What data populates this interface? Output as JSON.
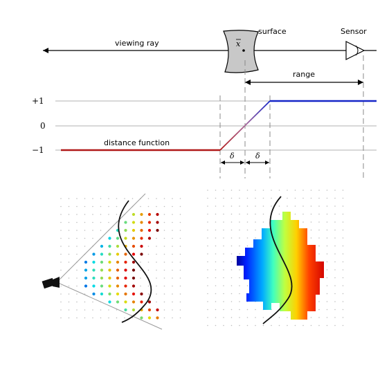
{
  "labels": {
    "viewing_ray": "viewing ray",
    "surface": "surface",
    "sensor": "Sensor",
    "range": "range",
    "x_point": "x",
    "distance_function": "distance function",
    "delta_left": "δ",
    "delta_right": "δ"
  },
  "axis_labels": {
    "plus_one": "+1",
    "zero": "0",
    "minus_one": "−1"
  },
  "colors": {
    "negative": "#b01818",
    "positive": "#1525c8",
    "surface_fill": "#c8c8c8",
    "guides": "#888888"
  },
  "icons": [
    "camera-icon",
    "sensor-icon"
  ]
}
